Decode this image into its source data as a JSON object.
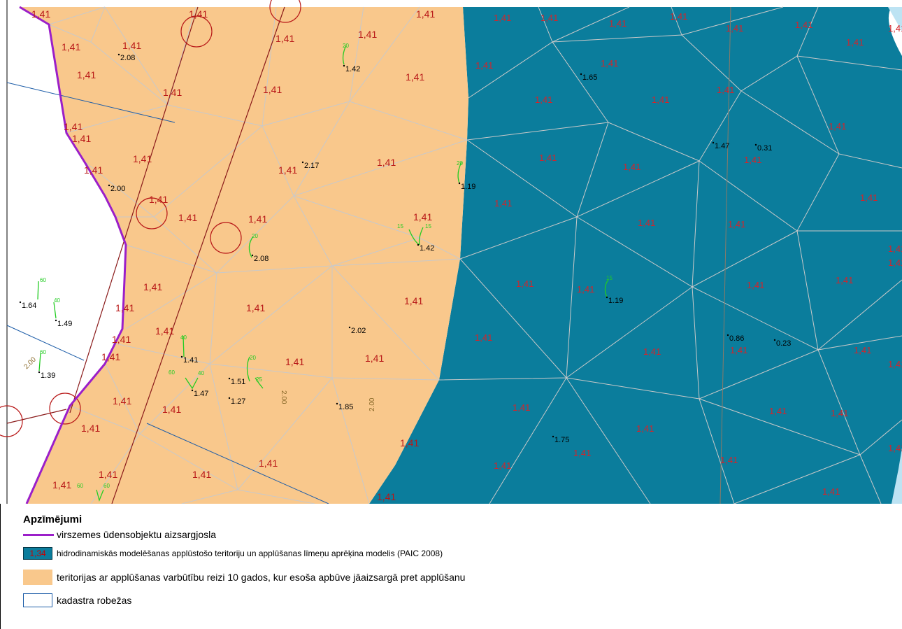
{
  "map": {
    "zone_labels": [
      "1,41"
    ],
    "depth_points": [
      {
        "label": "2.08"
      },
      {
        "label": "1.42"
      },
      {
        "label": "1.65"
      },
      {
        "label": "2.17"
      },
      {
        "label": "1.19"
      },
      {
        "label": "2.00"
      },
      {
        "label": "1.47"
      },
      {
        "label": "0.31"
      },
      {
        "label": "2.08"
      },
      {
        "label": "1.42"
      },
      {
        "label": "1.64"
      },
      {
        "label": "1.49"
      },
      {
        "label": "1.19"
      },
      {
        "label": "2.02"
      },
      {
        "label": "0.86"
      },
      {
        "label": "0.23"
      },
      {
        "label": "1.39"
      },
      {
        "label": "1.41"
      },
      {
        "label": "1.47"
      },
      {
        "label": "1.51"
      },
      {
        "label": "1.27"
      },
      {
        "label": "1.85"
      },
      {
        "label": "1.75"
      }
    ],
    "contour_labels": [
      "20",
      "15",
      "60",
      "40",
      "25",
      "2.00"
    ],
    "colors": {
      "flood_model": "#0b7d9c",
      "flood_zone_10yr": "#f9c88c",
      "protection_zone": "#9b1fc9",
      "cadastre": "#1d5da8",
      "grid_lines": "#c9c9c9",
      "circles": "#b81818",
      "zone_label": "#b81818",
      "contours": "#22cc22"
    }
  },
  "legend": {
    "title": "Apzīmējumi",
    "items": [
      {
        "key": "protection_zone",
        "label": "virszemes ūdensobjektu aizsargjosla"
      },
      {
        "key": "flood_model",
        "swatch_text": "1,34",
        "label": "hidrodinamiskās modelēšanas applūstošo teritoriju un applūšanas līmeņu aprēķina modelis (PAIC 2008)"
      },
      {
        "key": "flood_zone_10yr",
        "label": "teritorijas ar applūšanas varbūtību reizi 10 gados, kur esoša apbūve jāaizsargā pret applūšanu"
      },
      {
        "key": "cadastre",
        "label": "kadastra robežas"
      }
    ]
  }
}
